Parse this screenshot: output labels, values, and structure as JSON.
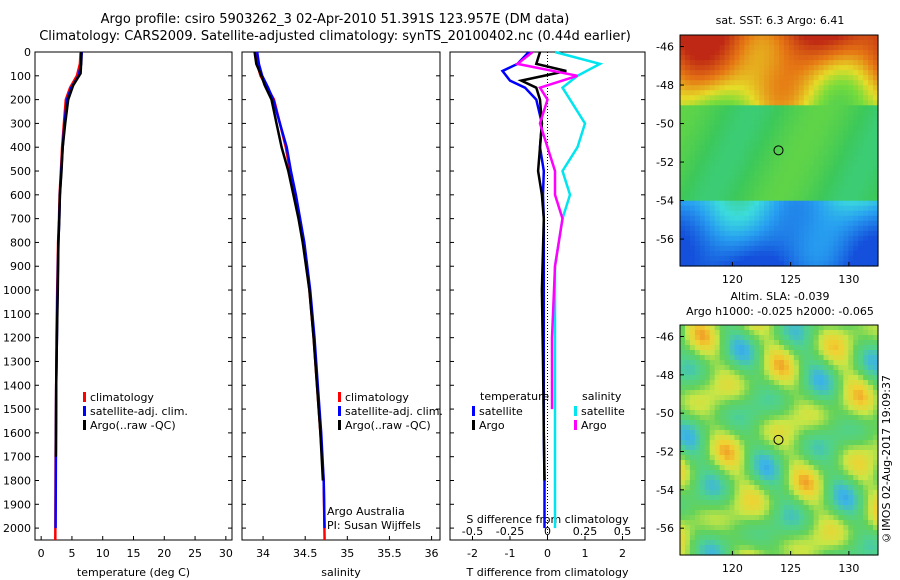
{
  "title_line1": "Argo profile: csiro 5903262_3 02-Apr-2010 51.391S 123.957E (DM data)",
  "title_line2": "Climatology: CARS2009. Satellite-adjusted climatology: synTS_20100402.nc (0.44d earlier)",
  "credit": "©IMOS 02-Aug-2017 19:09:37",
  "colors": {
    "clim": "#ff0000",
    "sat": "#0000ff",
    "argo": "#000000",
    "sal_sat": "#00e5ee",
    "sal_argo": "#ff00ff"
  },
  "chart_data": [
    {
      "type": "line",
      "panel": "temperature",
      "xlabel": "temperature (deg C)",
      "xlim": [
        -1,
        31
      ],
      "ylim": [
        2050,
        0
      ],
      "xticks": [
        "0",
        "5",
        "10",
        "15",
        "20",
        "25",
        "30"
      ],
      "yticks": [
        "0",
        "100",
        "200",
        "300",
        "400",
        "500",
        "600",
        "700",
        "800",
        "900",
        "1000",
        "1100",
        "1200",
        "1300",
        "1400",
        "1500",
        "1600",
        "1700",
        "1800",
        "1900",
        "2000"
      ],
      "legend": [
        "climatology",
        "satellite-adj. clim.",
        "Argo(..raw -QC)"
      ],
      "legend_position": "lower-middle",
      "series": [
        {
          "name": "climatology",
          "x": [
            6.4,
            6.3,
            5.8,
            4.7,
            4.0,
            3.7,
            3.4,
            3.2,
            3.0,
            2.9,
            2.75,
            2.6,
            2.5,
            2.45,
            2.35,
            2.3
          ],
          "y": [
            0,
            50,
            100,
            150,
            200,
            300,
            400,
            500,
            600,
            700,
            800,
            1000,
            1200,
            1400,
            1700,
            2050
          ]
        },
        {
          "name": "satellite-adj. clim.",
          "x": [
            6.6,
            6.5,
            6.1,
            4.9,
            4.2,
            3.8,
            3.5,
            3.25,
            3.05,
            2.95,
            2.8,
            2.65,
            2.55,
            2.45,
            2.4,
            2.35
          ],
          "y": [
            0,
            50,
            100,
            150,
            200,
            300,
            400,
            500,
            600,
            700,
            800,
            1000,
            1200,
            1400,
            1700,
            2000
          ]
        },
        {
          "name": "Argo(..raw -QC)",
          "x": [
            6.5,
            6.5,
            6.4,
            5.2,
            4.4,
            3.9,
            3.5,
            3.3,
            3.05,
            2.95,
            2.8,
            2.7,
            2.55,
            2.45,
            2.4
          ],
          "y": [
            0,
            40,
            90,
            140,
            200,
            300,
            400,
            500,
            600,
            700,
            800,
            1000,
            1200,
            1400,
            1700
          ]
        }
      ]
    },
    {
      "type": "line",
      "panel": "salinity",
      "xlabel": "salinity",
      "xlim": [
        33.75,
        36.1
      ],
      "ylim": [
        2050,
        0
      ],
      "xticks": [
        "34",
        "34.5",
        "35",
        "35.5",
        "36"
      ],
      "legend": [
        "climatology",
        "satellite-adj. clim.",
        "Argo(..raw -QC)"
      ],
      "legend_position": "lower-right",
      "annotation": [
        "Argo Australia",
        "PI: Susan Wijffels"
      ],
      "series": [
        {
          "name": "climatology",
          "x": [
            33.93,
            33.93,
            33.97,
            34.05,
            34.13,
            34.2,
            34.27,
            34.32,
            34.38,
            34.43,
            34.48,
            34.55,
            34.6,
            34.64,
            34.68,
            34.72,
            34.73
          ],
          "y": [
            0,
            50,
            100,
            150,
            200,
            300,
            400,
            500,
            600,
            700,
            800,
            1000,
            1200,
            1400,
            1600,
            1800,
            2050
          ]
        },
        {
          "name": "satellite-adj. clim.",
          "x": [
            33.93,
            33.95,
            33.99,
            34.06,
            34.12,
            34.2,
            34.28,
            34.33,
            34.39,
            34.44,
            34.49,
            34.56,
            34.61,
            34.65,
            34.69,
            34.72,
            34.73
          ],
          "y": [
            0,
            50,
            100,
            150,
            200,
            300,
            400,
            500,
            600,
            700,
            800,
            1000,
            1200,
            1400,
            1600,
            1800,
            2000
          ]
        },
        {
          "name": "Argo(..raw -QC)",
          "x": [
            33.9,
            33.92,
            33.98,
            34.02,
            34.1,
            34.16,
            34.22,
            34.3,
            34.36,
            34.42,
            34.47,
            34.55,
            34.6,
            34.64,
            34.68,
            34.71
          ],
          "y": [
            0,
            50,
            100,
            140,
            200,
            300,
            400,
            500,
            600,
            700,
            800,
            1000,
            1200,
            1400,
            1600,
            1800
          ]
        }
      ]
    },
    {
      "type": "line",
      "panel": "differences",
      "xlabel": "T difference from climatology",
      "xlabel_top": "S difference from climatology",
      "xlim": [
        -2.6,
        2.6
      ],
      "ylim": [
        2050,
        0
      ],
      "xticks": [
        "-2",
        "-1",
        "0",
        "1",
        "2"
      ],
      "xticks_top": [
        "-0.5",
        "-0.25",
        "0",
        "0.25",
        "0.5"
      ],
      "legend_headers": [
        "temperature",
        "salinity"
      ],
      "legend": [
        "satellite",
        "Argo",
        "satellite",
        "Argo"
      ],
      "legend_position": "lower-middle",
      "series": [
        {
          "name": "satellite",
          "group": "temperature",
          "x": [
            -0.5,
            -0.8,
            -1.2,
            -1.0,
            -0.6,
            -0.3,
            -0.15,
            -0.2,
            -0.1,
            -0.12,
            -0.1,
            -0.1,
            -0.1,
            -0.1,
            -0.08,
            -0.08
          ],
          "y": [
            0,
            50,
            80,
            120,
            150,
            200,
            300,
            400,
            500,
            600,
            700,
            1000,
            1300,
            1600,
            1800,
            2000
          ]
        },
        {
          "name": "Argo",
          "group": "temperature",
          "x": [
            -0.2,
            -0.3,
            0.5,
            -0.7,
            -0.3,
            -0.2,
            -0.15,
            -0.2,
            -0.25,
            -0.15,
            -0.1,
            -0.15,
            -0.12,
            -0.1,
            -0.08
          ],
          "y": [
            0,
            50,
            80,
            120,
            150,
            200,
            300,
            400,
            500,
            600,
            700,
            1000,
            1300,
            1600,
            1800
          ]
        },
        {
          "name": "satellite",
          "group": "salinity",
          "x": [
            0.05,
            0.35,
            0.2,
            0.1,
            0.15,
            0.25,
            0.2,
            0.1,
            0.15,
            0.1,
            0.05,
            0.05,
            0.05,
            0.05
          ],
          "y": [
            0,
            50,
            100,
            150,
            200,
            300,
            400,
            500,
            600,
            700,
            900,
            1200,
            1600,
            2000
          ]
        },
        {
          "name": "Argo",
          "group": "salinity",
          "x": [
            -0.1,
            -0.2,
            0.2,
            -0.05,
            0.0,
            -0.05,
            0.0,
            0.05,
            0.05,
            0.1,
            0.05,
            0.03,
            0.03
          ],
          "y": [
            0,
            50,
            100,
            150,
            200,
            300,
            400,
            500,
            600,
            700,
            900,
            1200,
            1500
          ]
        }
      ]
    },
    {
      "type": "heatmap",
      "panel": "sst_map",
      "title": "sat. SST: 6.3 Argo: 6.41",
      "xticks": [
        "120",
        "125",
        "130"
      ],
      "yticks": [
        "-46",
        "-48",
        "-50",
        "-52",
        "-54",
        "-56"
      ],
      "marker": {
        "lon": 123.957,
        "lat": -51.391
      }
    },
    {
      "type": "heatmap",
      "panel": "sla_map",
      "title_lines": [
        "Altim. SLA: -0.039",
        "Argo h1000: -0.025 h2000: -0.065"
      ],
      "xticks": [
        "120",
        "125",
        "130"
      ],
      "yticks": [
        "-46",
        "-48",
        "-50",
        "-52",
        "-54",
        "-56"
      ],
      "marker": {
        "lon": 123.957,
        "lat": -51.391
      }
    }
  ]
}
